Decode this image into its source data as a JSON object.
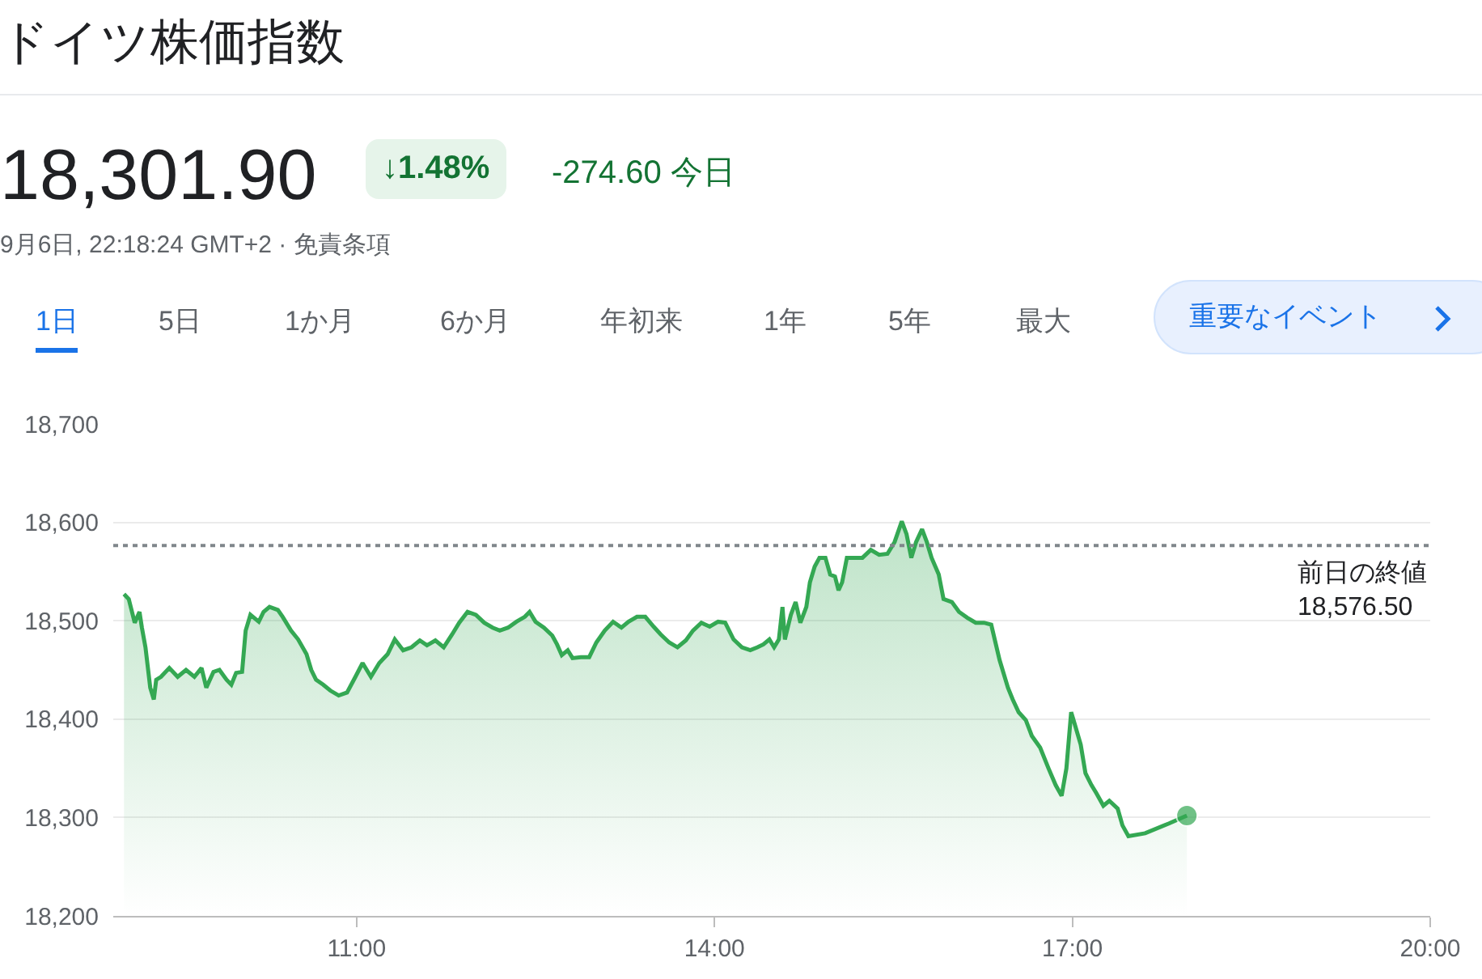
{
  "chart_data": {
    "type": "area",
    "title": "ドイツ株価指数",
    "annotations": [
      "18,301.90",
      "↓1.48%",
      "-274.60 今日",
      "9月6日, 22:18:24 GMT+2 · 免責条項",
      "1日",
      "5日",
      "1か月",
      "6か月",
      "年初来",
      "1年",
      "5年",
      "最大",
      "重要なイベント"
    ],
    "x": [
      9.05,
      9.09,
      9.14,
      9.18,
      9.2,
      9.23,
      9.27,
      9.3,
      9.32,
      9.36,
      9.43,
      9.5,
      9.57,
      9.64,
      9.7,
      9.74,
      9.8,
      9.85,
      9.91,
      9.95,
      9.99,
      10.04,
      10.07,
      10.11,
      10.18,
      10.22,
      10.27,
      10.34,
      10.38,
      10.45,
      10.51,
      10.58,
      10.62,
      10.66,
      10.72,
      10.78,
      10.85,
      10.92,
      10.99,
      11.05,
      11.12,
      11.19,
      11.26,
      11.32,
      11.39,
      11.46,
      11.53,
      11.59,
      11.66,
      11.73,
      11.8,
      11.86,
      11.93,
      12.0,
      12.07,
      12.14,
      12.2,
      12.27,
      12.34,
      12.41,
      12.45,
      12.5,
      12.57,
      12.64,
      12.68,
      12.72,
      12.77,
      12.81,
      12.88,
      12.95,
      13.01,
      13.08,
      13.15,
      13.22,
      13.28,
      13.35,
      13.42,
      13.49,
      13.55,
      13.62,
      13.69,
      13.76,
      13.82,
      13.89,
      13.96,
      14.03,
      14.09,
      14.16,
      14.23,
      14.3,
      14.36,
      14.41,
      14.46,
      14.5,
      14.54,
      14.57,
      14.59,
      14.64,
      14.68,
      14.72,
      14.77,
      14.8,
      14.84,
      14.88,
      14.93,
      14.97,
      15.01,
      15.04,
      15.07,
      15.11,
      15.18,
      15.24,
      15.31,
      15.38,
      15.45,
      15.51,
      15.57,
      15.61,
      15.65,
      15.69,
      15.74,
      15.78,
      15.82,
      15.88,
      15.92,
      15.99,
      16.05,
      16.12,
      16.19,
      16.26,
      16.32,
      16.39,
      16.46,
      16.5,
      16.55,
      16.61,
      16.66,
      16.73,
      16.8,
      16.86,
      16.91,
      16.95,
      16.99,
      17.01,
      17.07,
      17.11,
      17.16,
      17.2,
      17.26,
      17.31,
      17.38,
      17.42,
      17.47,
      17.61,
      17.81,
      17.96
    ],
    "series": [
      {
        "color": "#34a853",
        "values": [
          18527,
          18522,
          18498,
          18509,
          18493,
          18473,
          18432,
          18420,
          18440,
          18443,
          18452,
          18443,
          18450,
          18443,
          18452,
          18432,
          18448,
          18450,
          18440,
          18435,
          18447,
          18448,
          18490,
          18506,
          18499,
          18509,
          18514,
          18511,
          18504,
          18490,
          18481,
          18466,
          18450,
          18440,
          18435,
          18429,
          18424,
          18427,
          18443,
          18457,
          18443,
          18457,
          18466,
          18481,
          18470,
          18473,
          18480,
          18475,
          18480,
          18473,
          18486,
          18498,
          18509,
          18506,
          18498,
          18493,
          18490,
          18493,
          18499,
          18504,
          18509,
          18499,
          18493,
          18485,
          18476,
          18465,
          18470,
          18462,
          18463,
          18463,
          18478,
          18490,
          18499,
          18493,
          18499,
          18504,
          18504,
          18494,
          18486,
          18478,
          18473,
          18480,
          18490,
          18498,
          18494,
          18499,
          18498,
          18481,
          18473,
          18470,
          18473,
          18476,
          18481,
          18473,
          18481,
          18514,
          18481,
          18506,
          18519,
          18498,
          18514,
          18539,
          18555,
          18564,
          18564,
          18547,
          18545,
          18531,
          18539,
          18564,
          18564,
          18564,
          18572,
          18567,
          18568,
          18580,
          18601,
          18588,
          18564,
          18580,
          18593,
          18580,
          18564,
          18547,
          18522,
          18519,
          18509,
          18503,
          18498,
          18498,
          18496,
          18460,
          18432,
          18420,
          18407,
          18399,
          18383,
          18371,
          18350,
          18333,
          18322,
          18350,
          18407,
          18399,
          18374,
          18345,
          18333,
          18325,
          18312,
          18317,
          18309,
          18292,
          18281,
          18284,
          18294,
          18302
        ]
      }
    ],
    "xlim": [
      8.96,
      20
    ],
    "ylim": [
      18200,
      18700
    ],
    "xticks": [
      {
        "value": 11,
        "label": "11:00"
      },
      {
        "value": 14,
        "label": "14:00"
      },
      {
        "value": 17,
        "label": "17:00"
      },
      {
        "value": 20,
        "label": "20:00"
      }
    ],
    "yticks": [
      {
        "value": 18200,
        "label": "18,200"
      },
      {
        "value": 18300,
        "label": "18,300"
      },
      {
        "value": 18400,
        "label": "18,400"
      },
      {
        "value": 18500,
        "label": "18,500"
      },
      {
        "value": 18600,
        "label": "18,600"
      },
      {
        "value": 18700,
        "label": "18,700"
      }
    ],
    "grid": "y",
    "legend": false,
    "ref_lines": [
      {
        "axis": "y",
        "value": 18576.5,
        "label": "前日の終値 18,576.50",
        "line_style": "dotted",
        "color": "#80868b"
      }
    ]
  }
}
